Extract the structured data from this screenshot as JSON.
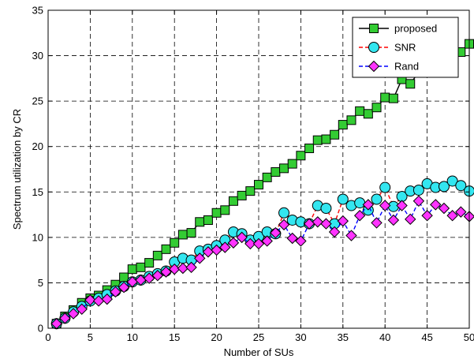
{
  "chart_data": {
    "type": "line",
    "xlabel": "Number of SUs",
    "ylabel": "Spectrum utilization by CR",
    "xlim": [
      0,
      50
    ],
    "ylim": [
      0,
      35
    ],
    "x_ticks": [
      "0",
      "5",
      "10",
      "15",
      "20",
      "25",
      "30",
      "35",
      "40",
      "45",
      "50"
    ],
    "y_ticks": [
      "0",
      "5",
      "10",
      "15",
      "20",
      "25",
      "30",
      "35"
    ],
    "grid": true,
    "grid_style": "dashed",
    "legend_position": "top-right",
    "x": [
      1,
      2,
      3,
      4,
      5,
      6,
      7,
      8,
      9,
      10,
      11,
      12,
      13,
      14,
      15,
      16,
      17,
      18,
      19,
      20,
      21,
      22,
      23,
      24,
      25,
      26,
      27,
      28,
      29,
      30,
      31,
      32,
      33,
      34,
      35,
      36,
      37,
      38,
      39,
      40,
      41,
      42,
      43,
      44,
      45,
      46,
      47,
      48,
      49,
      50
    ],
    "series": [
      {
        "name": "proposed",
        "line_color": "#000000",
        "line_style": "solid",
        "marker": "square",
        "marker_color": "#33cc33",
        "values": [
          0.5,
          1.3,
          2.0,
          2.8,
          3.3,
          3.6,
          4.2,
          4.8,
          5.6,
          6.5,
          6.7,
          7.2,
          8.0,
          8.7,
          9.4,
          10.3,
          10.5,
          11.7,
          11.9,
          12.7,
          13.0,
          14.0,
          14.6,
          15.1,
          15.8,
          16.6,
          17.2,
          17.6,
          18.1,
          19.0,
          19.8,
          20.7,
          20.8,
          21.3,
          22.4,
          22.9,
          23.9,
          23.6,
          24.3,
          25.4,
          25.3,
          27.4,
          26.9,
          28.2,
          28.6,
          29.0,
          29.5,
          30.0,
          30.4,
          31.3
        ]
      },
      {
        "name": "SNR",
        "line_color": "#ff0000",
        "line_style": "dashed",
        "marker": "circle",
        "marker_color": "#33e6f0",
        "values": [
          0.5,
          1.1,
          1.8,
          2.4,
          3.0,
          3.3,
          3.7,
          4.1,
          4.6,
          5.1,
          5.3,
          5.7,
          6.0,
          6.3,
          7.3,
          7.7,
          7.5,
          8.5,
          8.7,
          9.1,
          9.7,
          10.6,
          10.4,
          9.7,
          10.1,
          10.6,
          10.4,
          12.7,
          11.9,
          11.7,
          11.5,
          13.5,
          13.2,
          11.5,
          14.2,
          13.5,
          13.8,
          13.0,
          14.2,
          15.5,
          13.4,
          14.5,
          15.1,
          15.2,
          15.9,
          15.5,
          15.6,
          16.2,
          15.7,
          15.1
        ]
      },
      {
        "name": "Rand",
        "line_color": "#0000ff",
        "line_style": "dashed",
        "marker": "diamond",
        "marker_color": "#ff33ff",
        "values": [
          0.5,
          1.1,
          1.6,
          2.1,
          3.1,
          3.0,
          3.2,
          4.0,
          4.5,
          5.1,
          5.3,
          5.5,
          5.8,
          6.2,
          6.5,
          6.6,
          6.7,
          7.7,
          8.4,
          8.6,
          8.9,
          9.4,
          10.0,
          9.3,
          9.3,
          9.6,
          10.5,
          11.4,
          9.9,
          9.6,
          11.5,
          11.7,
          11.5,
          10.6,
          11.8,
          10.2,
          12.4,
          13.6,
          11.6,
          13.5,
          11.9,
          13.5,
          12.0,
          14.0,
          12.4,
          13.6,
          13.2,
          12.4,
          12.8,
          12.3
        ]
      }
    ]
  }
}
